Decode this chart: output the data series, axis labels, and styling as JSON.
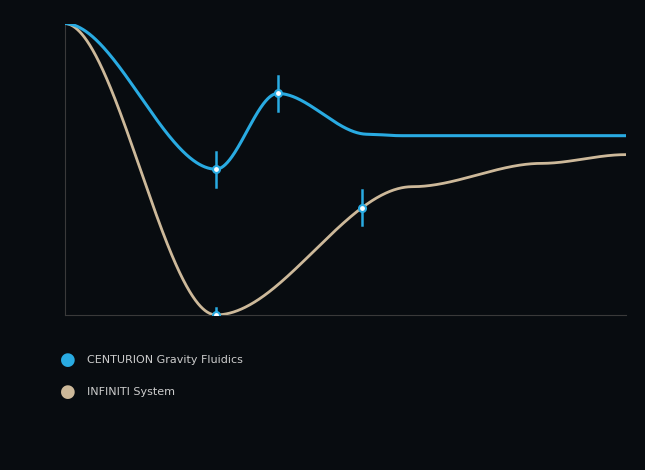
{
  "background_color": "#080c10",
  "plot_bg_color": "#080c10",
  "blue_color": "#29abe2",
  "tan_color": "#cdb99a",
  "axis_color": "#3a3a3a",
  "legend_blue_label": "CENTURION Gravity Fluidics",
  "legend_tan_label": "INFINITI System",
  "marker_face": "#ffffff",
  "figsize": [
    6.45,
    4.7
  ],
  "dpi": 100
}
